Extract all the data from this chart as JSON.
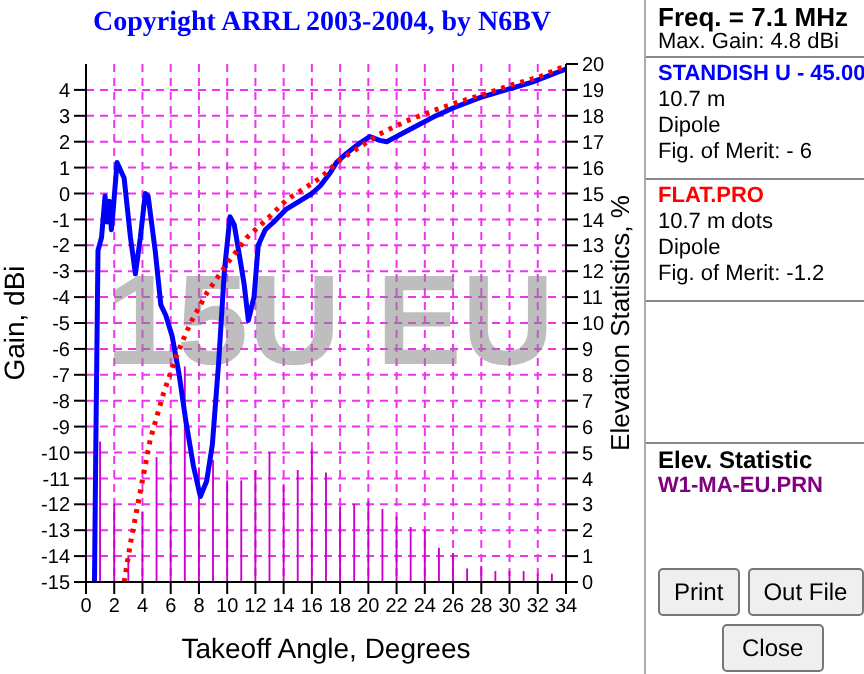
{
  "chart_data": {
    "type": "line",
    "title": "Copyright ARRL 2003-2004, by N6BV",
    "xlabel": "Takeoff Angle, Degrees",
    "ylabel": "Gain, dBi",
    "y2label": "Elevation Statistics, %",
    "annotations": [
      "15U EU",
      "Freq. = 7.1 MHz",
      "Max. Gain: 4.8 dBi",
      "10.7 m",
      "Dipole",
      "Fig. of Merit: - 6",
      "10.7 m dots",
      "Dipole",
      "Fig. of Merit: -1.2",
      "Elev. Statistic",
      "Print",
      "Out File",
      "Close"
    ],
    "xlim": [
      0,
      34
    ],
    "xticks": [
      0,
      2,
      4,
      6,
      8,
      10,
      12,
      14,
      16,
      18,
      20,
      22,
      24,
      26,
      28,
      30,
      32,
      34
    ],
    "ylim": [
      -15,
      5
    ],
    "yticks": [
      -15,
      -14,
      -13,
      -12,
      -11,
      -10,
      -9,
      -8,
      -7,
      -6,
      -5,
      -4,
      -3,
      -2,
      -1,
      0,
      1,
      2,
      3,
      4
    ],
    "y2lim": [
      0,
      20
    ],
    "y2ticks": [
      0,
      1,
      2,
      3,
      4,
      5,
      6,
      7,
      8,
      9,
      10,
      11,
      12,
      13,
      14,
      15,
      16,
      17,
      18,
      19,
      20
    ],
    "grid": true,
    "legend": "right",
    "series": [
      {
        "name": "STANDISH U - 45.00",
        "color": "#0000ff",
        "line_style": "solid",
        "x": [
          0.6,
          0.7,
          0.85,
          1.1,
          1.35,
          1.5,
          1.65,
          1.8,
          1.9,
          2.2,
          2.7,
          3.15,
          3.5,
          3.85,
          4.2,
          4.4,
          4.9,
          5.3,
          5.65,
          6.1,
          6.6,
          7.05,
          7.6,
          8.1,
          8.55,
          8.95,
          9.4,
          9.8,
          10.2,
          10.5,
          10.9,
          11.2,
          11.5,
          11.9,
          12.2,
          12.7,
          13.3,
          14.2,
          15.1,
          16.0,
          16.6,
          17.3,
          17.75,
          18.45,
          19.4,
          20.1,
          20.8,
          21.3,
          22.0,
          23.2,
          24.6,
          26.0,
          27.9,
          29.75,
          31.6,
          33.5,
          34
        ],
        "values": [
          -15,
          -9.5,
          -2.2,
          -1.7,
          -0.1,
          -1.1,
          -0.3,
          -1.4,
          -0.8,
          1.2,
          0.6,
          -1.7,
          -3.1,
          -1.7,
          0,
          -0.1,
          -2.2,
          -4.3,
          -4.7,
          -5.5,
          -7.0,
          -8.7,
          -10.5,
          -11.7,
          -11.1,
          -9.7,
          -6.5,
          -3.0,
          -0.9,
          -1.2,
          -2.5,
          -3.5,
          -4.9,
          -4.0,
          -2.0,
          -1.4,
          -1.1,
          -0.6,
          -0.3,
          0.0,
          0.3,
          0.8,
          1.2,
          1.55,
          1.95,
          2.2,
          2.05,
          2.0,
          2.2,
          2.55,
          2.95,
          3.3,
          3.7,
          4.0,
          4.3,
          4.7,
          4.8
        ]
      },
      {
        "name": "FLAT.PRO",
        "color": "#ff0000",
        "line_style": "dotted",
        "x": [
          2.7,
          3.15,
          3.85,
          4.55,
          5.5,
          6.45,
          7.4,
          8.55,
          10,
          11.4,
          12.8,
          14.2,
          16.6,
          18,
          19.4,
          20.8,
          22.7,
          24.6,
          26.5,
          28.3,
          30.2,
          32.1,
          33.6,
          34
        ],
        "values": [
          -15,
          -13.5,
          -11.5,
          -9.5,
          -7.7,
          -6.2,
          -5.0,
          -3.85,
          -2.7,
          -1.7,
          -1.0,
          -0.25,
          0.6,
          1.3,
          1.8,
          2.3,
          2.8,
          3.2,
          3.55,
          3.85,
          4.2,
          4.5,
          4.85,
          4.9
        ]
      },
      {
        "name": "W1-MA-EU.PRN",
        "type": "bar",
        "axis": "y2",
        "color": "#800080",
        "x": [
          1,
          2,
          3,
          4,
          5,
          6,
          7,
          8,
          9,
          10,
          11,
          12,
          13,
          14,
          15,
          16,
          17,
          18,
          19,
          20,
          21,
          22,
          23,
          24,
          25,
          26,
          27,
          28,
          29,
          30,
          31,
          32,
          33
        ],
        "values": [
          5.4,
          3.0,
          1.0,
          2.7,
          4.8,
          6.2,
          8.3,
          4.4,
          4.7,
          3.9,
          3.9,
          4.3,
          5.0,
          3.7,
          4.3,
          5.1,
          4.2,
          2.9,
          3.0,
          3.1,
          2.8,
          2.5,
          2.1,
          2.0,
          1.3,
          1.1,
          0.5,
          0.6,
          0.4,
          0.4,
          0.4,
          0.3,
          0.3
        ]
      }
    ]
  }
}
